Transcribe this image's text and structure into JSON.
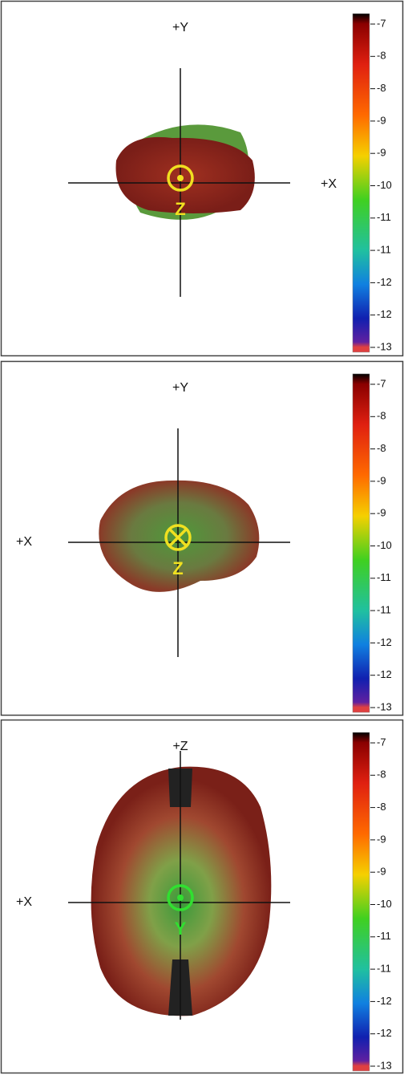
{
  "panels": [
    {
      "top_label": "+Y",
      "side_label": "+X",
      "marker_label": "Z",
      "colorbar_labels": [
        "-7",
        "-8",
        "-8",
        "-9",
        "-9",
        "-10",
        "-11",
        "-11",
        "-12",
        "-12",
        "-13"
      ]
    },
    {
      "top_label": "+Y",
      "side_label": "+X",
      "marker_label": "Z",
      "colorbar_labels": [
        "-7",
        "-8",
        "-8",
        "-9",
        "-9",
        "-10",
        "-11",
        "-11",
        "-12",
        "-12",
        "-13"
      ]
    },
    {
      "top_label": "+Z",
      "side_label": "+X",
      "marker_label": "Y",
      "colorbar_labels": [
        "-7",
        "-8",
        "-8",
        "-9",
        "-9",
        "-10",
        "-11",
        "-11",
        "-12",
        "-12",
        "-13"
      ]
    }
  ]
}
